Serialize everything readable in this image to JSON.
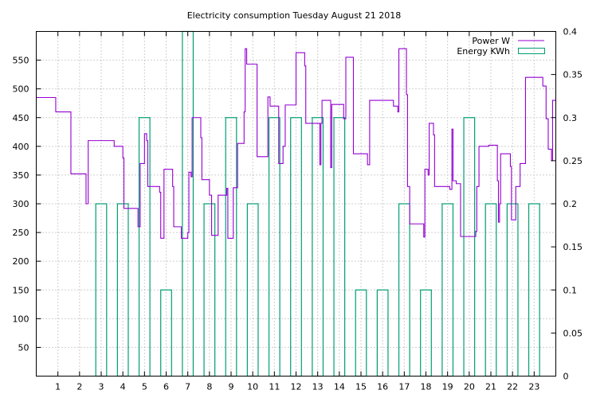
{
  "chart_data": {
    "type": "line",
    "title": "Electricity consumption Tuesday August 21 2018",
    "xlabel": "",
    "ylabel": "",
    "y2label": "",
    "xlim": [
      0,
      24
    ],
    "ylim": [
      0,
      600
    ],
    "y2lim": [
      0,
      0.4
    ],
    "xticks": [
      1,
      2,
      3,
      4,
      5,
      6,
      7,
      8,
      9,
      10,
      11,
      12,
      13,
      14,
      15,
      16,
      17,
      18,
      19,
      20,
      21,
      22,
      23
    ],
    "yticks": [
      50,
      100,
      150,
      200,
      250,
      300,
      350,
      400,
      450,
      500,
      550
    ],
    "y2ticks": [
      0,
      0.05,
      0.1,
      0.15,
      0.2,
      0.25,
      0.3,
      0.35,
      0.4
    ],
    "grid": true,
    "legend_position": "top-right",
    "colors": {
      "power": "#9400d3",
      "energy": "#009e73"
    },
    "series": [
      {
        "name": "Power W",
        "axis": "left",
        "style": "steps",
        "points": [
          [
            0.0,
            485
          ],
          [
            0.9,
            485
          ],
          [
            0.9,
            460
          ],
          [
            1.6,
            460
          ],
          [
            1.6,
            352
          ],
          [
            2.3,
            352
          ],
          [
            2.3,
            300
          ],
          [
            2.4,
            300
          ],
          [
            2.4,
            410
          ],
          [
            3.6,
            410
          ],
          [
            3.6,
            400
          ],
          [
            4.0,
            400
          ],
          [
            4.0,
            380
          ],
          [
            4.05,
            380
          ],
          [
            4.05,
            292
          ],
          [
            4.7,
            292
          ],
          [
            4.7,
            260
          ],
          [
            4.8,
            260
          ],
          [
            4.8,
            370
          ],
          [
            5.0,
            370
          ],
          [
            5.0,
            422
          ],
          [
            5.1,
            422
          ],
          [
            5.1,
            410
          ],
          [
            5.15,
            410
          ],
          [
            5.15,
            330
          ],
          [
            5.7,
            330
          ],
          [
            5.7,
            320
          ],
          [
            5.75,
            320
          ],
          [
            5.75,
            240
          ],
          [
            5.9,
            240
          ],
          [
            5.9,
            360
          ],
          [
            6.3,
            360
          ],
          [
            6.3,
            330
          ],
          [
            6.35,
            330
          ],
          [
            6.35,
            260
          ],
          [
            6.7,
            260
          ],
          [
            6.7,
            240
          ],
          [
            7.0,
            240
          ],
          [
            7.0,
            250
          ],
          [
            7.05,
            250
          ],
          [
            7.05,
            355
          ],
          [
            7.15,
            355
          ],
          [
            7.15,
            347
          ],
          [
            7.2,
            347
          ],
          [
            7.2,
            450
          ],
          [
            7.6,
            450
          ],
          [
            7.6,
            415
          ],
          [
            7.65,
            415
          ],
          [
            7.65,
            342
          ],
          [
            8.0,
            342
          ],
          [
            8.0,
            315
          ],
          [
            8.1,
            315
          ],
          [
            8.1,
            245
          ],
          [
            8.4,
            245
          ],
          [
            8.4,
            315
          ],
          [
            8.8,
            315
          ],
          [
            8.8,
            327
          ],
          [
            8.85,
            327
          ],
          [
            8.85,
            240
          ],
          [
            9.1,
            240
          ],
          [
            9.1,
            328
          ],
          [
            9.3,
            328
          ],
          [
            9.3,
            405
          ],
          [
            9.6,
            405
          ],
          [
            9.6,
            460
          ],
          [
            9.65,
            460
          ],
          [
            9.65,
            570
          ],
          [
            9.72,
            570
          ],
          [
            9.72,
            543
          ],
          [
            10.2,
            543
          ],
          [
            10.2,
            382
          ],
          [
            10.7,
            382
          ],
          [
            10.7,
            486
          ],
          [
            10.8,
            486
          ],
          [
            10.8,
            470
          ],
          [
            11.2,
            470
          ],
          [
            11.2,
            370
          ],
          [
            11.4,
            370
          ],
          [
            11.4,
            400
          ],
          [
            11.5,
            400
          ],
          [
            11.5,
            472
          ],
          [
            12.0,
            472
          ],
          [
            12.0,
            563
          ],
          [
            12.4,
            563
          ],
          [
            12.4,
            540
          ],
          [
            12.45,
            540
          ],
          [
            12.45,
            440
          ],
          [
            13.1,
            440
          ],
          [
            13.1,
            368
          ],
          [
            13.15,
            368
          ],
          [
            13.15,
            440
          ],
          [
            13.2,
            440
          ],
          [
            13.2,
            480
          ],
          [
            13.6,
            480
          ],
          [
            13.6,
            363
          ],
          [
            13.65,
            363
          ],
          [
            13.65,
            473
          ],
          [
            14.2,
            473
          ],
          [
            14.2,
            448
          ],
          [
            14.3,
            448
          ],
          [
            14.3,
            555
          ],
          [
            14.65,
            555
          ],
          [
            14.65,
            387
          ],
          [
            15.3,
            387
          ],
          [
            15.3,
            368
          ],
          [
            15.4,
            368
          ],
          [
            15.4,
            480
          ],
          [
            16.5,
            480
          ],
          [
            16.5,
            470
          ],
          [
            16.7,
            470
          ],
          [
            16.7,
            460
          ],
          [
            16.75,
            460
          ],
          [
            16.75,
            570
          ],
          [
            17.1,
            570
          ],
          [
            17.1,
            490
          ],
          [
            17.15,
            490
          ],
          [
            17.15,
            330
          ],
          [
            17.25,
            330
          ],
          [
            17.25,
            265
          ],
          [
            17.9,
            265
          ],
          [
            17.9,
            242
          ],
          [
            17.95,
            242
          ],
          [
            17.95,
            360
          ],
          [
            18.1,
            360
          ],
          [
            18.1,
            350
          ],
          [
            18.15,
            350
          ],
          [
            18.15,
            440
          ],
          [
            18.35,
            440
          ],
          [
            18.35,
            420
          ],
          [
            18.4,
            420
          ],
          [
            18.4,
            330
          ],
          [
            19.1,
            330
          ],
          [
            19.1,
            325
          ],
          [
            19.2,
            325
          ],
          [
            19.2,
            430
          ],
          [
            19.25,
            430
          ],
          [
            19.25,
            340
          ],
          [
            19.4,
            340
          ],
          [
            19.4,
            335
          ],
          [
            19.6,
            335
          ],
          [
            19.6,
            243
          ],
          [
            20.3,
            243
          ],
          [
            20.3,
            252
          ],
          [
            20.35,
            252
          ],
          [
            20.35,
            330
          ],
          [
            20.45,
            330
          ],
          [
            20.45,
            400
          ],
          [
            20.9,
            400
          ],
          [
            20.9,
            402
          ],
          [
            21.3,
            402
          ],
          [
            21.3,
            340
          ],
          [
            21.35,
            340
          ],
          [
            21.35,
            268
          ],
          [
            21.4,
            268
          ],
          [
            21.4,
            300
          ],
          [
            21.45,
            300
          ],
          [
            21.45,
            387
          ],
          [
            21.9,
            387
          ],
          [
            21.9,
            365
          ],
          [
            21.95,
            365
          ],
          [
            21.95,
            272
          ],
          [
            22.15,
            272
          ],
          [
            22.15,
            330
          ],
          [
            22.35,
            330
          ],
          [
            22.35,
            370
          ],
          [
            22.6,
            370
          ],
          [
            22.6,
            520
          ],
          [
            23.4,
            520
          ],
          [
            23.4,
            505
          ],
          [
            23.55,
            505
          ],
          [
            23.55,
            448
          ],
          [
            23.65,
            448
          ],
          [
            23.65,
            395
          ],
          [
            23.8,
            395
          ],
          [
            23.8,
            375
          ],
          [
            23.85,
            375
          ],
          [
            23.85,
            480
          ],
          [
            24.0,
            480
          ]
        ]
      },
      {
        "name": "Energy KWh",
        "axis": "right",
        "style": "bars",
        "bars": [
          [
            2.75,
            3.25,
            0.2
          ],
          [
            3.75,
            4.25,
            0.2
          ],
          [
            4.75,
            5.25,
            0.3
          ],
          [
            5.75,
            6.25,
            0.1
          ],
          [
            6.75,
            7.25,
            0.4
          ],
          [
            7.75,
            8.25,
            0.2
          ],
          [
            8.75,
            9.25,
            0.3
          ],
          [
            9.75,
            10.25,
            0.2
          ],
          [
            10.75,
            11.25,
            0.3
          ],
          [
            11.75,
            12.25,
            0.3
          ],
          [
            12.75,
            13.25,
            0.3
          ],
          [
            13.75,
            14.25,
            0.3
          ],
          [
            14.75,
            15.25,
            0.1
          ],
          [
            15.75,
            16.25,
            0.1
          ],
          [
            16.75,
            17.25,
            0.2
          ],
          [
            17.75,
            18.25,
            0.1
          ],
          [
            18.75,
            19.25,
            0.2
          ],
          [
            19.75,
            20.25,
            0.3
          ],
          [
            20.75,
            21.25,
            0.2
          ],
          [
            21.75,
            22.25,
            0.2
          ],
          [
            22.75,
            23.25,
            0.2
          ]
        ]
      }
    ]
  }
}
